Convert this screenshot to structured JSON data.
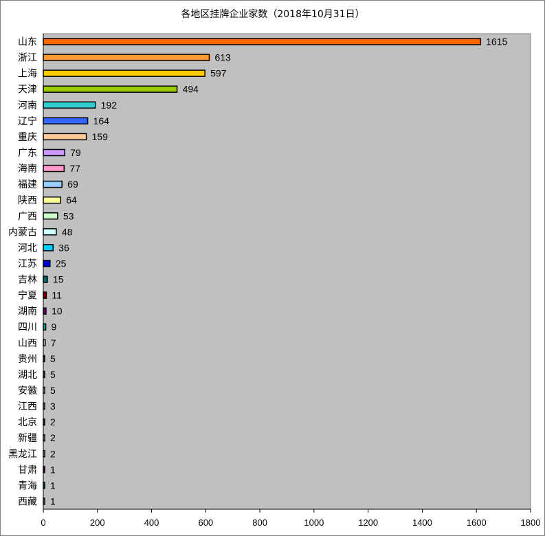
{
  "chart_data": {
    "type": "bar",
    "orientation": "horizontal",
    "title": "各地区挂牌企业家数（2018年10月31日）",
    "xlabel": "",
    "ylabel": "",
    "xlim": [
      0,
      1800
    ],
    "xticks": [
      0,
      200,
      400,
      600,
      800,
      1000,
      1200,
      1400,
      1600,
      1800
    ],
    "grid": false,
    "plot_background": "#c0c0c0",
    "categories": [
      "山东",
      "浙江",
      "上海",
      "天津",
      "河南",
      "辽宁",
      "重庆",
      "广东",
      "海南",
      "福建",
      "陕西",
      "广西",
      "内蒙古",
      "河北",
      "江苏",
      "吉林",
      "宁夏",
      "湖南",
      "四川",
      "山西",
      "贵州",
      "湖北",
      "安徽",
      "江西",
      "北京",
      "新疆",
      "黑龙江",
      "甘肃",
      "青海",
      "西藏"
    ],
    "values": [
      1615,
      613,
      597,
      494,
      192,
      164,
      159,
      79,
      77,
      69,
      64,
      53,
      48,
      36,
      25,
      15,
      11,
      10,
      9,
      7,
      5,
      5,
      5,
      3,
      2,
      2,
      2,
      1,
      1,
      1
    ],
    "colors": [
      "#ff6600",
      "#ff9933",
      "#ffcc00",
      "#99cc00",
      "#33cccc",
      "#3366ff",
      "#ffcc99",
      "#cc99ff",
      "#ff99cc",
      "#99ccff",
      "#ffff99",
      "#ccffcc",
      "#ccffff",
      "#00ccff",
      "#0000cc",
      "#006666",
      "#800000",
      "#660066",
      "#339999",
      "#cccc99",
      "#336699",
      "#808080",
      "#ffffff",
      "#ccccff",
      "#993366",
      "#ffcc99",
      "#ccffff",
      "#800080",
      "#008080",
      "#c0c0c0"
    ]
  }
}
